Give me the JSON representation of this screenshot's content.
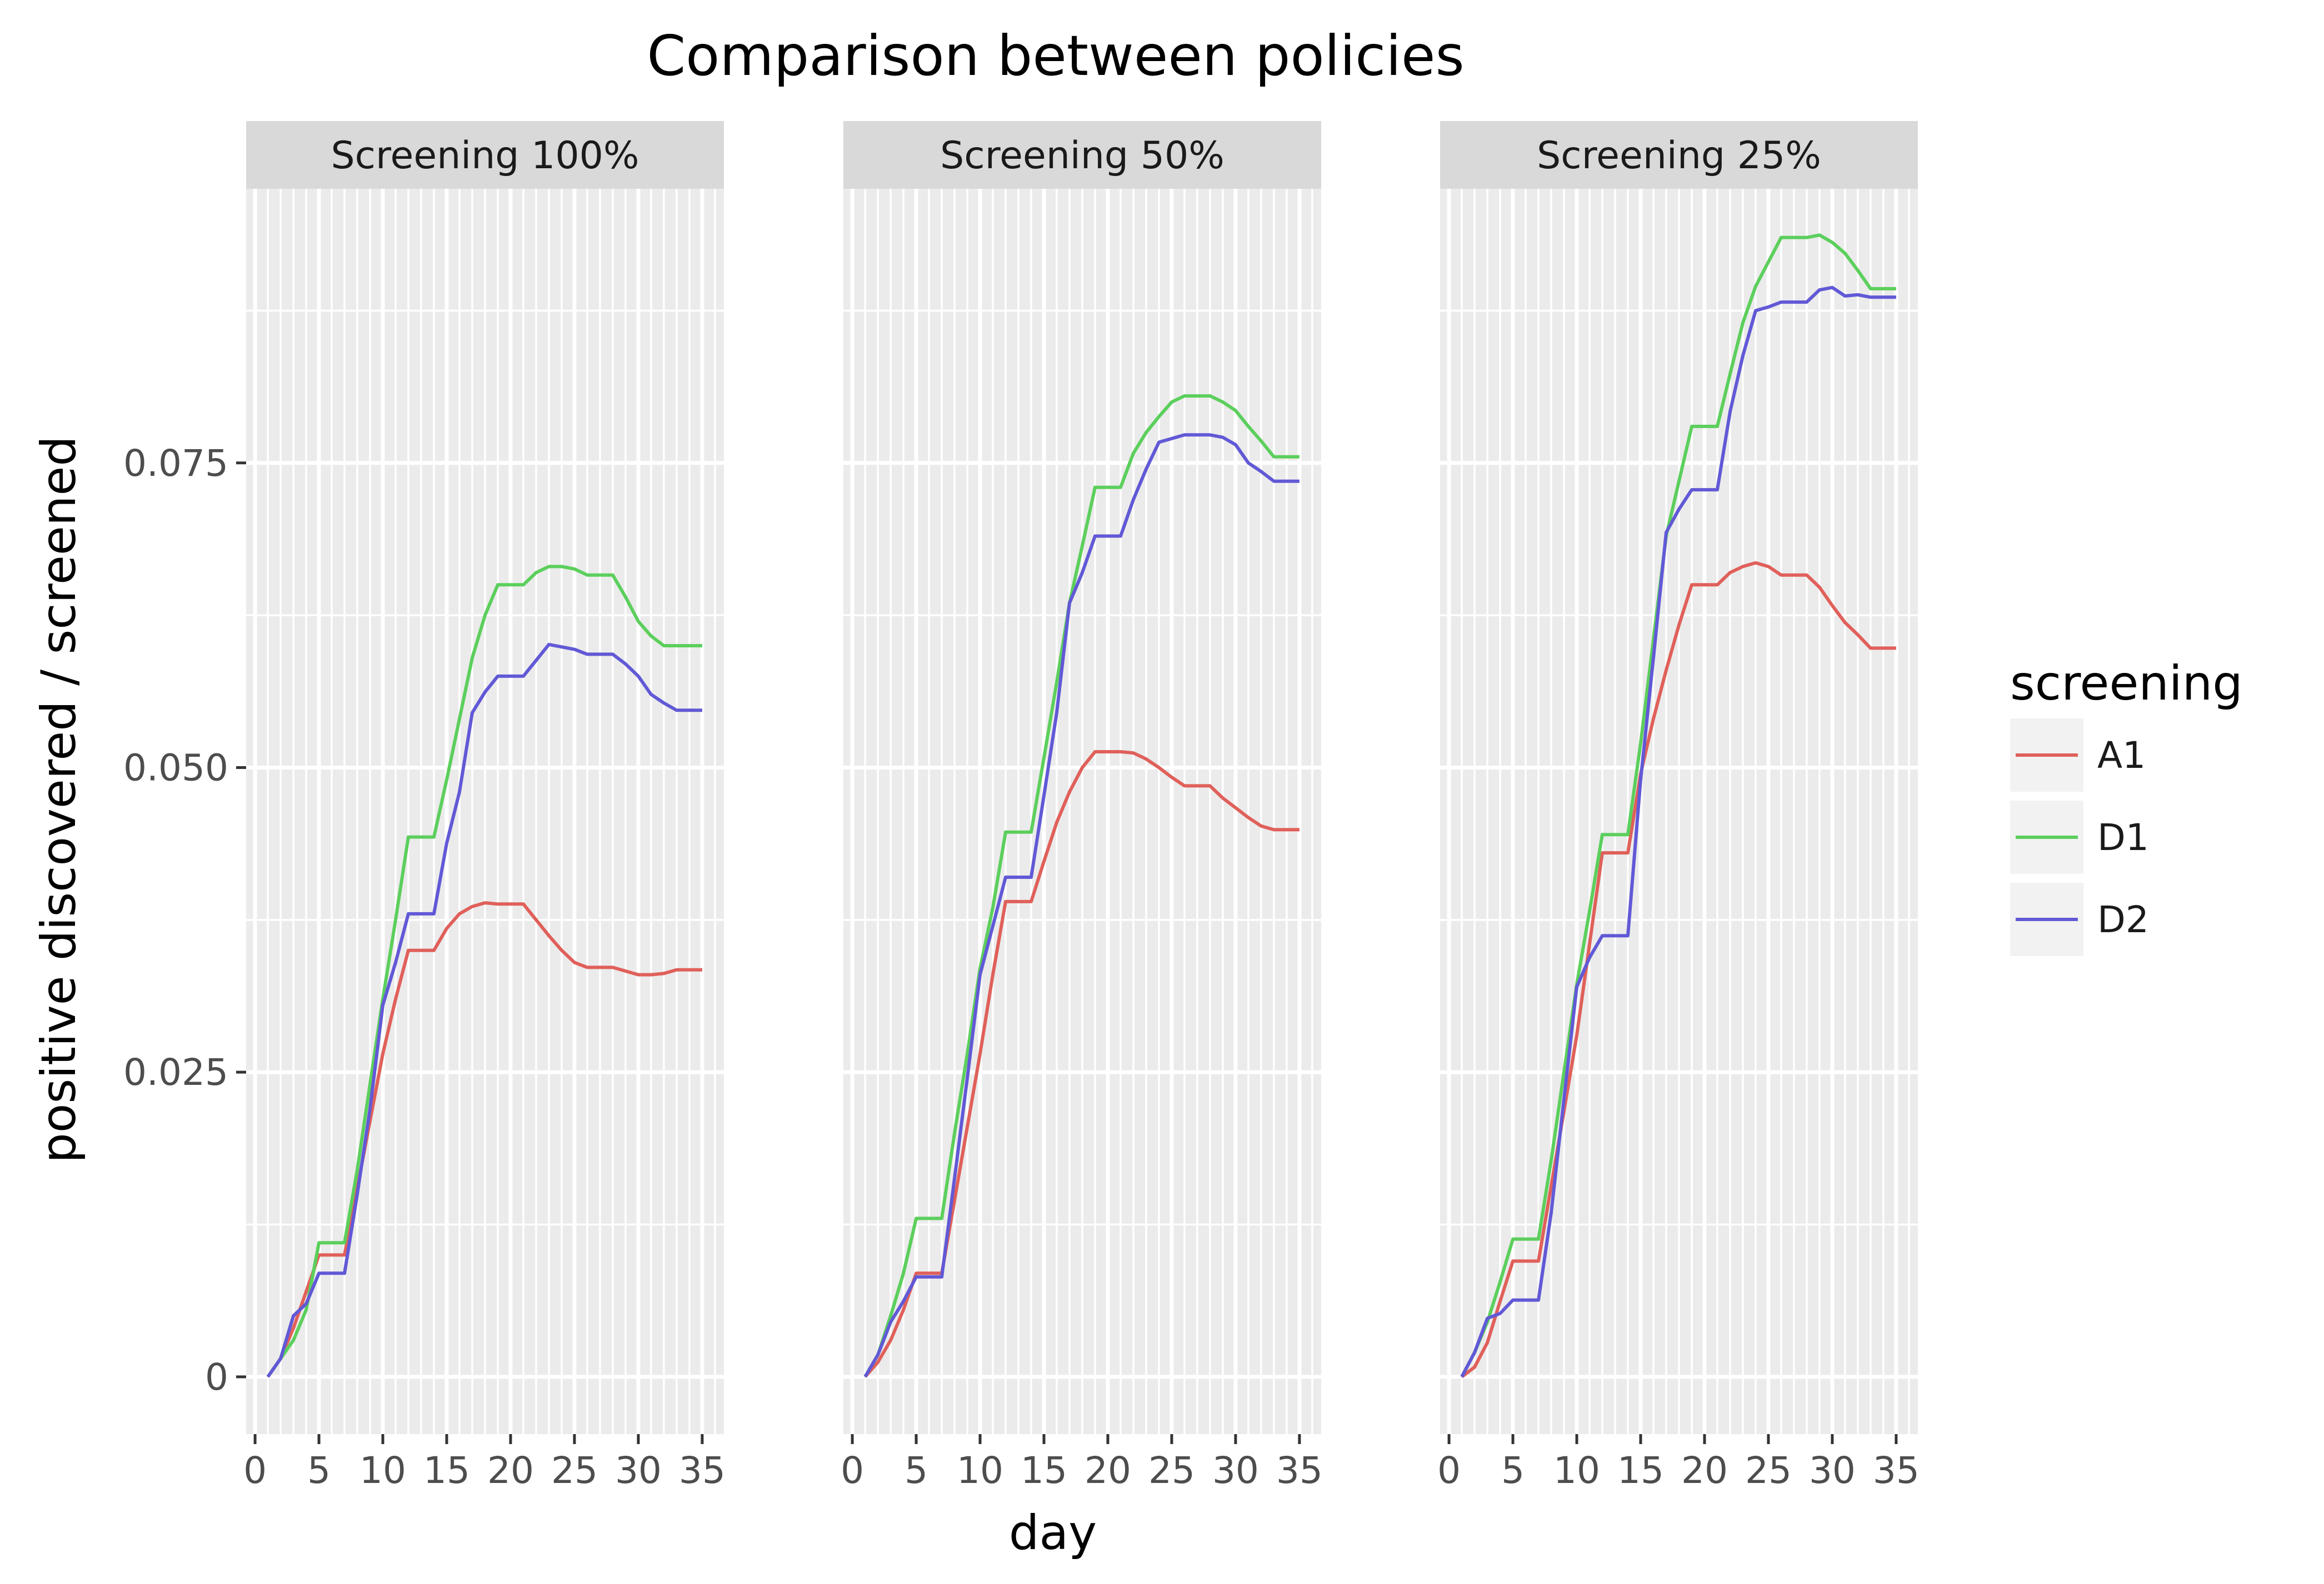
{
  "chart_data": {
    "type": "line",
    "title": "Comparison between policies",
    "xlabel": "day",
    "ylabel": "positive discovered / screened",
    "xlim": [
      -0.7,
      36.7
    ],
    "ylim": [
      -0.0047,
      0.0975
    ],
    "x_ticks": [
      0,
      5,
      10,
      15,
      20,
      25,
      30,
      35
    ],
    "x_tick_labels": [
      "0",
      "5",
      "10",
      "15",
      "20",
      "25",
      "30",
      "35"
    ],
    "y_ticks": [
      0,
      0.025,
      0.05,
      0.075
    ],
    "y_tick_labels": [
      "0",
      "0.025",
      "0.050",
      "0.075"
    ],
    "grid": true,
    "legend": {
      "title": "screening",
      "position": "right",
      "entries": [
        {
          "label": "A1",
          "color": "#E0605A"
        },
        {
          "label": "D1",
          "color": "#5CCF5C"
        },
        {
          "label": "D2",
          "color": "#6159D6"
        }
      ]
    },
    "x": [
      1,
      2,
      3,
      4,
      5,
      6,
      7,
      8,
      9,
      10,
      11,
      12,
      13,
      14,
      15,
      16,
      17,
      18,
      19,
      20,
      21,
      22,
      23,
      24,
      25,
      26,
      27,
      28,
      29,
      30,
      31,
      32,
      33,
      34,
      35
    ],
    "panels": [
      {
        "label": "Screening 100%",
        "series": [
          {
            "name": "A1",
            "values": [
              0,
              0.0015,
              0.004,
              0.007,
              0.01,
              0.01,
              0.01,
              0.0155,
              0.021,
              0.0265,
              0.031,
              0.035,
              0.035,
              0.035,
              0.0368,
              0.038,
              0.0386,
              0.0389,
              0.0388,
              0.0388,
              0.0388,
              0.0375,
              0.0362,
              0.035,
              0.034,
              0.0336,
              0.0336,
              0.0336,
              0.0333,
              0.033,
              0.033,
              0.0331,
              0.0334,
              0.0334,
              0.0334
            ]
          },
          {
            "name": "D1",
            "values": [
              0,
              0.0015,
              0.003,
              0.0055,
              0.011,
              0.011,
              0.011,
              0.017,
              0.024,
              0.031,
              0.0375,
              0.0443,
              0.0443,
              0.0443,
              0.049,
              0.054,
              0.059,
              0.0625,
              0.065,
              0.065,
              0.065,
              0.066,
              0.0665,
              0.0665,
              0.0663,
              0.0658,
              0.0658,
              0.0658,
              0.064,
              0.062,
              0.0608,
              0.06,
              0.06,
              0.06,
              0.06
            ]
          },
          {
            "name": "D2",
            "values": [
              0,
              0.0015,
              0.005,
              0.006,
              0.0085,
              0.0085,
              0.0085,
              0.015,
              0.022,
              0.0305,
              0.034,
              0.038,
              0.038,
              0.038,
              0.0438,
              0.048,
              0.0545,
              0.0562,
              0.0575,
              0.0575,
              0.0575,
              0.0588,
              0.0601,
              0.0599,
              0.0597,
              0.0593,
              0.0593,
              0.0593,
              0.0585,
              0.0575,
              0.056,
              0.0553,
              0.0547,
              0.0547,
              0.0547
            ]
          }
        ]
      },
      {
        "label": "Screening 50%",
        "series": [
          {
            "name": "A1",
            "values": [
              0,
              0.0012,
              0.003,
              0.0055,
              0.0085,
              0.0085,
              0.0085,
              0.0145,
              0.0205,
              0.0265,
              0.033,
              0.039,
              0.039,
              0.039,
              0.0423,
              0.0455,
              0.048,
              0.05,
              0.0513,
              0.0513,
              0.0513,
              0.0512,
              0.0507,
              0.05,
              0.0492,
              0.0485,
              0.0485,
              0.0485,
              0.0475,
              0.0467,
              0.0459,
              0.0452,
              0.0449,
              0.0449,
              0.0449
            ]
          },
          {
            "name": "D1",
            "values": [
              0,
              0.0018,
              0.005,
              0.0085,
              0.013,
              0.013,
              0.013,
              0.02,
              0.0265,
              0.0335,
              0.0385,
              0.0447,
              0.0447,
              0.0447,
              0.0508,
              0.057,
              0.0635,
              0.0682,
              0.073,
              0.073,
              0.073,
              0.0758,
              0.0775,
              0.0788,
              0.08,
              0.0805,
              0.0805,
              0.0805,
              0.08,
              0.0793,
              0.078,
              0.0768,
              0.0755,
              0.0755,
              0.0755
            ]
          },
          {
            "name": "D2",
            "values": [
              0,
              0.0018,
              0.0045,
              0.0062,
              0.0082,
              0.0082,
              0.0082,
              0.0163,
              0.0245,
              0.033,
              0.037,
              0.041,
              0.041,
              0.041,
              0.0477,
              0.0545,
              0.0635,
              0.066,
              0.069,
              0.069,
              0.069,
              0.072,
              0.0745,
              0.0767,
              0.077,
              0.0773,
              0.0773,
              0.0773,
              0.0771,
              0.0765,
              0.075,
              0.0743,
              0.0735,
              0.0735,
              0.0735
            ]
          }
        ]
      },
      {
        "label": "Screening 25%",
        "series": [
          {
            "name": "A1",
            "values": [
              0,
              0.0008,
              0.0028,
              0.0062,
              0.0095,
              0.0095,
              0.0095,
              0.0157,
              0.0218,
              0.028,
              0.0355,
              0.043,
              0.043,
              0.043,
              0.0495,
              0.054,
              0.058,
              0.0617,
              0.065,
              0.065,
              0.065,
              0.066,
              0.0665,
              0.0668,
              0.0665,
              0.0658,
              0.0658,
              0.0658,
              0.0648,
              0.0633,
              0.0619,
              0.0609,
              0.0598,
              0.0598,
              0.0598
            ]
          },
          {
            "name": "D1",
            "values": [
              0,
              0.002,
              0.0045,
              0.0078,
              0.0113,
              0.0113,
              0.0113,
              0.0178,
              0.025,
              0.0322,
              0.0382,
              0.0445,
              0.0445,
              0.0445,
              0.052,
              0.0605,
              0.069,
              0.0735,
              0.078,
              0.078,
              0.078,
              0.0823,
              0.0865,
              0.0895,
              0.0915,
              0.0935,
              0.0935,
              0.0935,
              0.0937,
              0.0931,
              0.0922,
              0.0908,
              0.0893,
              0.0893,
              0.0893
            ]
          },
          {
            "name": "D2",
            "values": [
              0,
              0.002,
              0.0048,
              0.0052,
              0.0063,
              0.0063,
              0.0063,
              0.0135,
              0.0228,
              0.032,
              0.0344,
              0.0362,
              0.0362,
              0.0362,
              0.049,
              0.059,
              0.0693,
              0.0712,
              0.0728,
              0.0728,
              0.0728,
              0.0792,
              0.0838,
              0.0875,
              0.0878,
              0.0882,
              0.0882,
              0.0882,
              0.0892,
              0.0894,
              0.0887,
              0.0888,
              0.0886,
              0.0886,
              0.0886
            ]
          }
        ]
      }
    ]
  }
}
